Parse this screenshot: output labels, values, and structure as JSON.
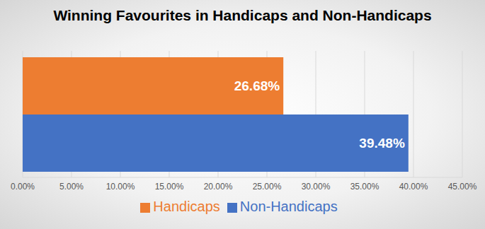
{
  "chart_data": {
    "type": "bar",
    "title": "Winning Favourites in Handicaps and Non-Handicaps",
    "orientation": "horizontal",
    "categories": [
      null
    ],
    "series": [
      {
        "name": "Handicaps",
        "color": "#ed7d31",
        "values": [
          26.68
        ],
        "value_labels": [
          "26.68%"
        ]
      },
      {
        "name": "Non-Handicaps",
        "color": "#4472c4",
        "values": [
          39.48
        ],
        "value_labels": [
          "39.48%"
        ]
      }
    ],
    "xlim": [
      0,
      45
    ],
    "xticks": [
      {
        "value": 0,
        "label": "0.00%"
      },
      {
        "value": 5,
        "label": "5.00%"
      },
      {
        "value": 10,
        "label": "10.00%"
      },
      {
        "value": 15,
        "label": "15.00%"
      },
      {
        "value": 20,
        "label": "20.00%"
      },
      {
        "value": 25,
        "label": "25.00%"
      },
      {
        "value": 30,
        "label": "30.00%"
      },
      {
        "value": 35,
        "label": "35.00%"
      },
      {
        "value": 40,
        "label": "40.00%"
      },
      {
        "value": 45,
        "label": "45.00%"
      }
    ],
    "grid": true,
    "legend": "bottom",
    "data_labels": true,
    "tick_labels": "x"
  }
}
